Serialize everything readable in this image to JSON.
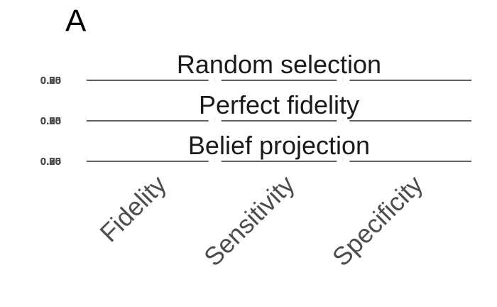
{
  "panel_label": "A",
  "chart_data": {
    "type": "bar",
    "categories": [
      "Fidelity",
      "Sensitivity",
      "Specificity"
    ],
    "facets": [
      {
        "title": "Random selection",
        "values": [
          0,
          0,
          0
        ]
      },
      {
        "title": "Perfect fidelity",
        "values": [
          0,
          0,
          0
        ]
      },
      {
        "title": "Belief projection",
        "values": [
          0,
          0,
          0
        ]
      }
    ],
    "ytick_labels": [
      "0.00",
      "0.25",
      "0.50",
      "0.75"
    ],
    "ylim": [
      0,
      0.75
    ],
    "grid": true,
    "xlabel": "",
    "ylabel": ""
  }
}
